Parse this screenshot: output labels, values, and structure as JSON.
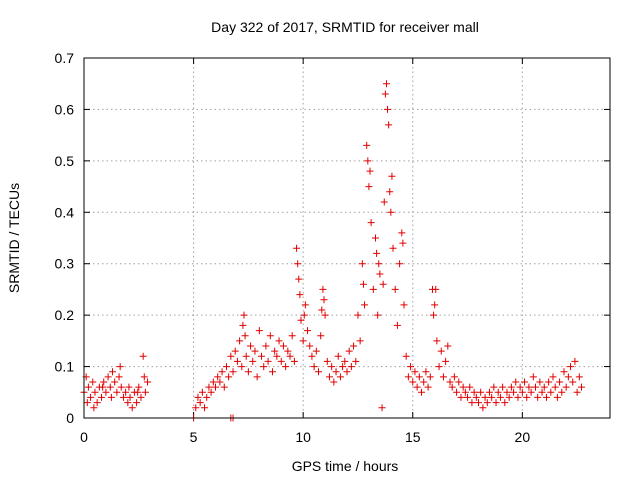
{
  "chart_data": {
    "type": "scatter",
    "title": "Day 322 of 2017, SRMTID for receiver mall",
    "xlabel": "GPS time / hours",
    "ylabel": "SRMTID / TECUs",
    "xlim": [
      0,
      24
    ],
    "ylim": [
      0,
      0.7
    ],
    "xticks": [
      0,
      5,
      10,
      15,
      20
    ],
    "xtick_labels": [
      "0",
      "5",
      "10",
      "15",
      "20"
    ],
    "yticks": [
      0,
      0.1,
      0.2,
      0.3,
      0.4,
      0.5,
      0.6,
      0.7
    ],
    "ytick_labels": [
      "0",
      "0.1",
      "0.2",
      "0.3",
      "0.4",
      "0.5",
      "0.6",
      "0.7"
    ],
    "grid": true,
    "marker": "+",
    "color": "#e00000",
    "series": [
      {
        "name": "SRMTID",
        "points": [
          [
            0.0,
            0.05
          ],
          [
            0.1,
            0.08
          ],
          [
            0.2,
            0.06
          ],
          [
            0.3,
            0.04
          ],
          [
            0.4,
            0.07
          ],
          [
            0.5,
            0.05
          ],
          [
            0.6,
            0.03
          ],
          [
            0.7,
            0.06
          ],
          [
            0.8,
            0.04
          ],
          [
            0.9,
            0.07
          ],
          [
            1.0,
            0.05
          ],
          [
            1.1,
            0.08
          ],
          [
            1.2,
            0.06
          ],
          [
            1.3,
            0.09
          ],
          [
            1.4,
            0.07
          ],
          [
            1.5,
            0.05
          ],
          [
            1.6,
            0.08
          ],
          [
            1.7,
            0.06
          ],
          [
            1.8,
            0.04
          ],
          [
            1.9,
            0.05
          ],
          [
            2.0,
            0.03
          ],
          [
            2.1,
            0.04
          ],
          [
            2.2,
            0.02
          ],
          [
            2.3,
            0.05
          ],
          [
            2.4,
            0.03
          ],
          [
            2.5,
            0.06
          ],
          [
            2.6,
            0.04
          ],
          [
            2.7,
            0.12
          ],
          [
            2.8,
            0.05
          ],
          [
            2.9,
            0.07
          ],
          [
            0.15,
            0.03
          ],
          [
            0.45,
            0.02
          ],
          [
            0.85,
            0.06
          ],
          [
            1.25,
            0.04
          ],
          [
            1.65,
            0.1
          ],
          [
            2.05,
            0.06
          ],
          [
            2.45,
            0.05
          ],
          [
            2.75,
            0.08
          ],
          [
            5.0,
            0.0
          ],
          [
            6.7,
            0.0
          ],
          [
            6.8,
            0.0
          ],
          [
            5.1,
            0.02
          ],
          [
            5.2,
            0.04
          ],
          [
            5.3,
            0.03
          ],
          [
            5.4,
            0.05
          ],
          [
            5.5,
            0.02
          ],
          [
            5.6,
            0.04
          ],
          [
            5.7,
            0.06
          ],
          [
            5.8,
            0.05
          ],
          [
            5.9,
            0.07
          ],
          [
            6.0,
            0.06
          ],
          [
            6.1,
            0.08
          ],
          [
            6.2,
            0.07
          ],
          [
            6.3,
            0.09
          ],
          [
            6.4,
            0.06
          ],
          [
            6.5,
            0.1
          ],
          [
            6.6,
            0.08
          ],
          [
            6.7,
            0.12
          ],
          [
            6.8,
            0.09
          ],
          [
            6.9,
            0.13
          ],
          [
            7.0,
            0.11
          ],
          [
            7.1,
            0.15
          ],
          [
            7.2,
            0.1
          ],
          [
            7.3,
            0.2
          ],
          [
            7.4,
            0.12
          ],
          [
            7.5,
            0.09
          ],
          [
            7.6,
            0.14
          ],
          [
            7.7,
            0.11
          ],
          [
            7.8,
            0.13
          ],
          [
            7.9,
            0.08
          ],
          [
            8.0,
            0.17
          ],
          [
            8.1,
            0.12
          ],
          [
            8.2,
            0.1
          ],
          [
            8.3,
            0.14
          ],
          [
            8.4,
            0.11
          ],
          [
            8.5,
            0.16
          ],
          [
            8.6,
            0.09
          ],
          [
            8.7,
            0.13
          ],
          [
            8.8,
            0.12
          ],
          [
            8.9,
            0.15
          ],
          [
            9.0,
            0.11
          ],
          [
            9.1,
            0.14
          ],
          [
            9.2,
            0.1
          ],
          [
            9.3,
            0.13
          ],
          [
            9.4,
            0.12
          ],
          [
            9.5,
            0.16
          ],
          [
            9.6,
            0.11
          ],
          [
            9.7,
            0.33
          ],
          [
            9.8,
            0.27
          ],
          [
            9.9,
            0.19
          ],
          [
            10.0,
            0.15
          ],
          [
            10.1,
            0.22
          ],
          [
            10.2,
            0.17
          ],
          [
            10.3,
            0.14
          ],
          [
            10.4,
            0.12
          ],
          [
            10.5,
            0.1
          ],
          [
            10.6,
            0.13
          ],
          [
            10.7,
            0.09
          ],
          [
            10.8,
            0.16
          ],
          [
            10.9,
            0.25
          ],
          [
            11.0,
            0.2
          ],
          [
            11.1,
            0.11
          ],
          [
            11.2,
            0.08
          ],
          [
            11.3,
            0.1
          ],
          [
            11.4,
            0.07
          ],
          [
            11.5,
            0.09
          ],
          [
            11.6,
            0.12
          ],
          [
            11.7,
            0.08
          ],
          [
            11.8,
            0.1
          ],
          [
            11.9,
            0.11
          ],
          [
            12.0,
            0.09
          ],
          [
            12.1,
            0.13
          ],
          [
            12.2,
            0.1
          ],
          [
            12.3,
            0.14
          ],
          [
            12.4,
            0.11
          ],
          [
            12.5,
            0.2
          ],
          [
            12.6,
            0.15
          ],
          [
            12.7,
            0.3
          ],
          [
            12.8,
            0.22
          ],
          [
            12.9,
            0.53
          ],
          [
            13.0,
            0.45
          ],
          [
            13.1,
            0.38
          ],
          [
            13.2,
            0.25
          ],
          [
            13.3,
            0.35
          ],
          [
            13.4,
            0.2
          ],
          [
            13.5,
            0.28
          ],
          [
            13.6,
            0.02
          ],
          [
            13.7,
            0.42
          ],
          [
            13.8,
            0.65
          ],
          [
            13.9,
            0.57
          ],
          [
            14.0,
            0.4
          ],
          [
            14.1,
            0.33
          ],
          [
            14.2,
            0.25
          ],
          [
            14.3,
            0.18
          ],
          [
            14.4,
            0.3
          ],
          [
            14.5,
            0.36
          ],
          [
            14.6,
            0.22
          ],
          [
            14.7,
            0.12
          ],
          [
            14.8,
            0.08
          ],
          [
            14.9,
            0.1
          ],
          [
            15.0,
            0.07
          ],
          [
            15.1,
            0.09
          ],
          [
            15.2,
            0.06
          ],
          [
            15.3,
            0.08
          ],
          [
            15.4,
            0.05
          ],
          [
            15.5,
            0.07
          ],
          [
            15.6,
            0.09
          ],
          [
            15.7,
            0.06
          ],
          [
            15.8,
            0.08
          ],
          [
            15.9,
            0.25
          ],
          [
            16.0,
            0.22
          ],
          [
            16.1,
            0.15
          ],
          [
            16.2,
            0.1
          ],
          [
            16.3,
            0.13
          ],
          [
            16.4,
            0.08
          ],
          [
            16.5,
            0.11
          ],
          [
            16.6,
            0.14
          ],
          [
            16.7,
            0.07
          ],
          [
            16.8,
            0.06
          ],
          [
            16.9,
            0.08
          ],
          [
            17.0,
            0.05
          ],
          [
            17.1,
            0.07
          ],
          [
            17.2,
            0.04
          ],
          [
            17.3,
            0.06
          ],
          [
            17.4,
            0.05
          ],
          [
            17.5,
            0.04
          ],
          [
            17.6,
            0.06
          ],
          [
            17.7,
            0.03
          ],
          [
            17.8,
            0.05
          ],
          [
            17.9,
            0.04
          ],
          [
            18.0,
            0.03
          ],
          [
            18.1,
            0.05
          ],
          [
            18.2,
            0.02
          ],
          [
            18.3,
            0.04
          ],
          [
            18.4,
            0.03
          ],
          [
            18.5,
            0.05
          ],
          [
            18.6,
            0.04
          ],
          [
            18.7,
            0.06
          ],
          [
            18.8,
            0.03
          ],
          [
            18.9,
            0.05
          ],
          [
            19.0,
            0.04
          ],
          [
            19.1,
            0.06
          ],
          [
            19.2,
            0.03
          ],
          [
            19.3,
            0.05
          ],
          [
            19.4,
            0.04
          ],
          [
            19.5,
            0.06
          ],
          [
            19.6,
            0.05
          ],
          [
            19.7,
            0.07
          ],
          [
            19.8,
            0.04
          ],
          [
            19.9,
            0.06
          ],
          [
            20.0,
            0.05
          ],
          [
            20.1,
            0.07
          ],
          [
            20.2,
            0.04
          ],
          [
            20.3,
            0.06
          ],
          [
            20.4,
            0.05
          ],
          [
            20.5,
            0.08
          ],
          [
            20.6,
            0.06
          ],
          [
            20.7,
            0.04
          ],
          [
            20.8,
            0.07
          ],
          [
            20.9,
            0.05
          ],
          [
            21.0,
            0.06
          ],
          [
            21.1,
            0.04
          ],
          [
            21.2,
            0.07
          ],
          [
            21.3,
            0.05
          ],
          [
            21.4,
            0.08
          ],
          [
            21.5,
            0.06
          ],
          [
            21.6,
            0.04
          ],
          [
            21.7,
            0.07
          ],
          [
            21.8,
            0.05
          ],
          [
            21.9,
            0.09
          ],
          [
            22.0,
            0.06
          ],
          [
            22.1,
            0.08
          ],
          [
            22.2,
            0.1
          ],
          [
            22.3,
            0.07
          ],
          [
            22.4,
            0.11
          ],
          [
            22.5,
            0.05
          ],
          [
            22.6,
            0.08
          ],
          [
            22.7,
            0.06
          ],
          [
            13.75,
            0.63
          ],
          [
            13.85,
            0.6
          ],
          [
            13.95,
            0.44
          ],
          [
            13.05,
            0.48
          ],
          [
            12.95,
            0.5
          ],
          [
            13.35,
            0.32
          ],
          [
            13.45,
            0.3
          ],
          [
            14.05,
            0.47
          ],
          [
            14.55,
            0.34
          ],
          [
            13.65,
            0.26
          ],
          [
            9.75,
            0.3
          ],
          [
            9.85,
            0.24
          ],
          [
            10.05,
            0.2
          ],
          [
            10.95,
            0.23
          ],
          [
            10.85,
            0.21
          ],
          [
            7.25,
            0.18
          ],
          [
            7.35,
            0.16
          ],
          [
            16.05,
            0.25
          ],
          [
            15.95,
            0.2
          ],
          [
            12.75,
            0.26
          ]
        ]
      }
    ]
  }
}
